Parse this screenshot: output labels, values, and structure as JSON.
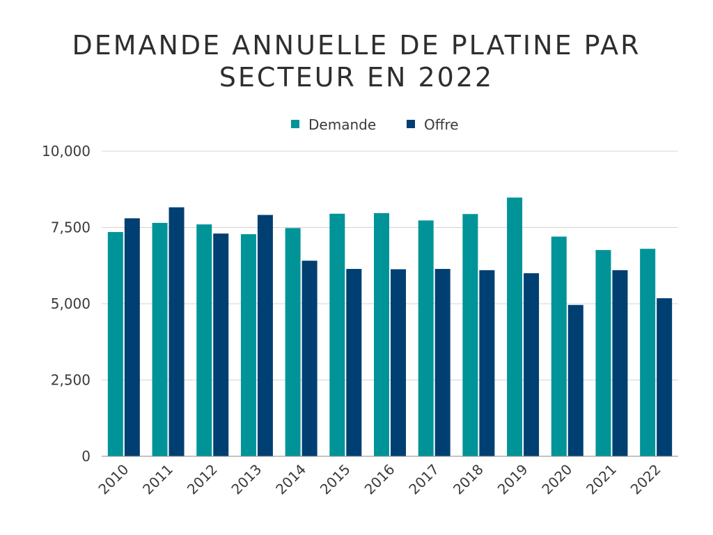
{
  "chart_data": {
    "type": "bar",
    "title": "DEMANDE ANNUELLE DE PLATINE PAR SECTEUR EN 2022",
    "categories": [
      "2010",
      "2011",
      "2012",
      "2013",
      "2014",
      "2015",
      "2016",
      "2017",
      "2018",
      "2019",
      "2020",
      "2021",
      "2022"
    ],
    "series": [
      {
        "name": "Demande",
        "color": "#009499",
        "values": [
          7350,
          7650,
          7600,
          7280,
          7480,
          7950,
          7970,
          7730,
          7940,
          8480,
          7200,
          6760,
          6800
        ]
      },
      {
        "name": "Offre",
        "color": "#003f72",
        "values": [
          7800,
          8160,
          7300,
          7910,
          6410,
          6140,
          6130,
          6140,
          6100,
          6000,
          4960,
          6100,
          5180
        ]
      }
    ],
    "yticks": [
      "0",
      "2,500",
      "5,000",
      "7,500",
      "10,000"
    ],
    "ylim": [
      0,
      10000
    ],
    "grid": true,
    "legend": "top-center"
  }
}
